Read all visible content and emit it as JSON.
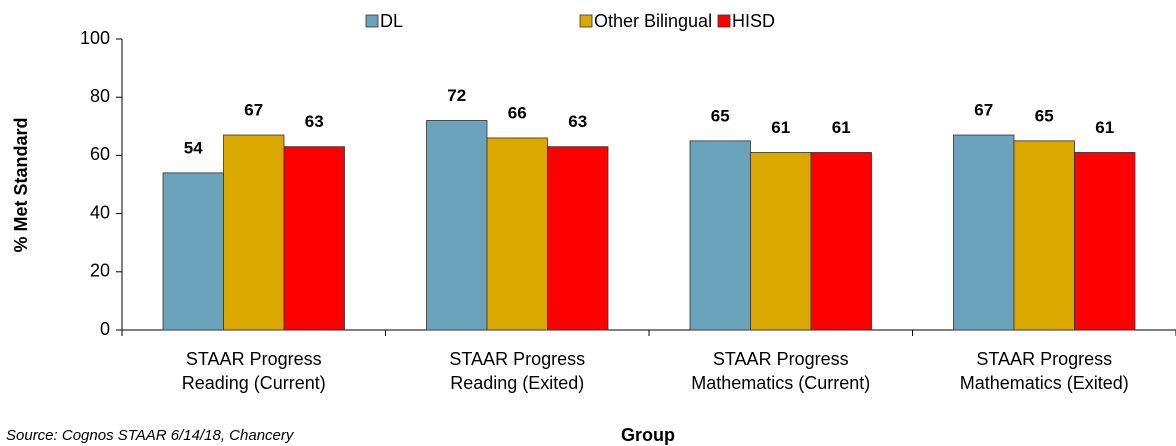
{
  "chart_data": {
    "type": "bar",
    "categories": [
      [
        "STAAR Progress",
        "Reading (Current)"
      ],
      [
        "STAAR Progress",
        "Reading (Exited)"
      ],
      [
        "STAAR Progress",
        "Mathematics (Current)"
      ],
      [
        "STAAR Progress",
        "Mathematics (Exited)"
      ]
    ],
    "series": [
      {
        "name": "DL",
        "color": "#6ba3bc",
        "values": [
          54,
          72,
          65,
          67
        ]
      },
      {
        "name": "Other Bilingual",
        "color": "#dba800",
        "values": [
          67,
          66,
          61,
          65
        ]
      },
      {
        "name": "HISD",
        "color": "#ff0000",
        "values": [
          63,
          63,
          61,
          61
        ]
      }
    ],
    "ylim": [
      0,
      100
    ],
    "yticks": [
      0,
      20,
      40,
      60,
      80,
      100
    ],
    "y_label": "% Met Standard",
    "x_label": "Group",
    "source": "Source: Cognos STAAR 6/14/18, Chancery",
    "legend": "top"
  }
}
